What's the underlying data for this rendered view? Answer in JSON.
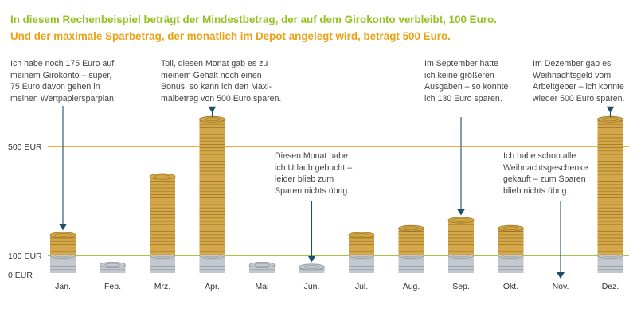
{
  "headline": {
    "line1": "In diesem Rechenbeispiel beträgt der Mindestbetrag, der auf dem Girokonto verbleibt, 100 Euro.",
    "line2": "Und der maximale Sparbetrag, der monatlich im Depot angelegt wird, beträgt 500 Euro."
  },
  "colors": {
    "headline1": "#95c11f",
    "headline2": "#e8a317",
    "line_500": "#e8a317",
    "line_100": "#95c11f",
    "arrow": "#1f4e6b",
    "gold_coin": "#d4a84a",
    "silver_coin": "#c3c9cf"
  },
  "annotations": [
    {
      "month": "Jan.",
      "text": "Ich habe noch 175 Euro auf\nmeinem Girokonto – super,\n75 Euro davon gehen in\nmeinen Wertpapiersparplan."
    },
    {
      "month": "Apr.",
      "text": "Toll, diesen Monat gab es zu\nmeinem Gehalt noch einen\nBonus, so kann ich den Maxi-\nmalbetrag von 500 Euro sparen."
    },
    {
      "month": "Jun.",
      "text": "Diesen Monat habe\nich Urlaub gebucht –\nleider blieb zum\nSparen nichts übrig."
    },
    {
      "month": "Sep.",
      "text": "Im September hatte\nich keine größeren\nAusgaben – so konnte\nich 130 Euro sparen."
    },
    {
      "month": "Nov.",
      "text": "Ich habe schon alle\nWeihnachtsgeschenke\ngekauft – zum Sparen\nblieb nichts übrig."
    },
    {
      "month": "Dez.",
      "text": "Im Dezember gab es\nWeihnachtsgeld vom\nArbeitgeber – ich konnte\nwieder 500 Euro sparen."
    }
  ],
  "chart_data": {
    "type": "bar",
    "categories": [
      "Jan.",
      "Feb.",
      "Mrz.",
      "Apr.",
      "Mai",
      "Jun.",
      "Jul.",
      "Aug.",
      "Sep.",
      "Okt.",
      "Nov.",
      "Dez."
    ],
    "series": [
      {
        "values": [
          100,
          50,
          100,
          100,
          50,
          40,
          100,
          100,
          100,
          100,
          0,
          100
        ]
      },
      {
        "values": [
          75,
          0,
          290,
          500,
          0,
          0,
          75,
          100,
          130,
          100,
          0,
          500
        ]
      }
    ],
    "y_tick_labels": [
      "0 EUR",
      "100 EUR",
      "500 EUR"
    ],
    "y_ticks": [
      0,
      100,
      500
    ],
    "reference_lines": [
      100,
      500
    ],
    "ylim": [
      0,
      500
    ],
    "grid": false,
    "legend": "none"
  }
}
